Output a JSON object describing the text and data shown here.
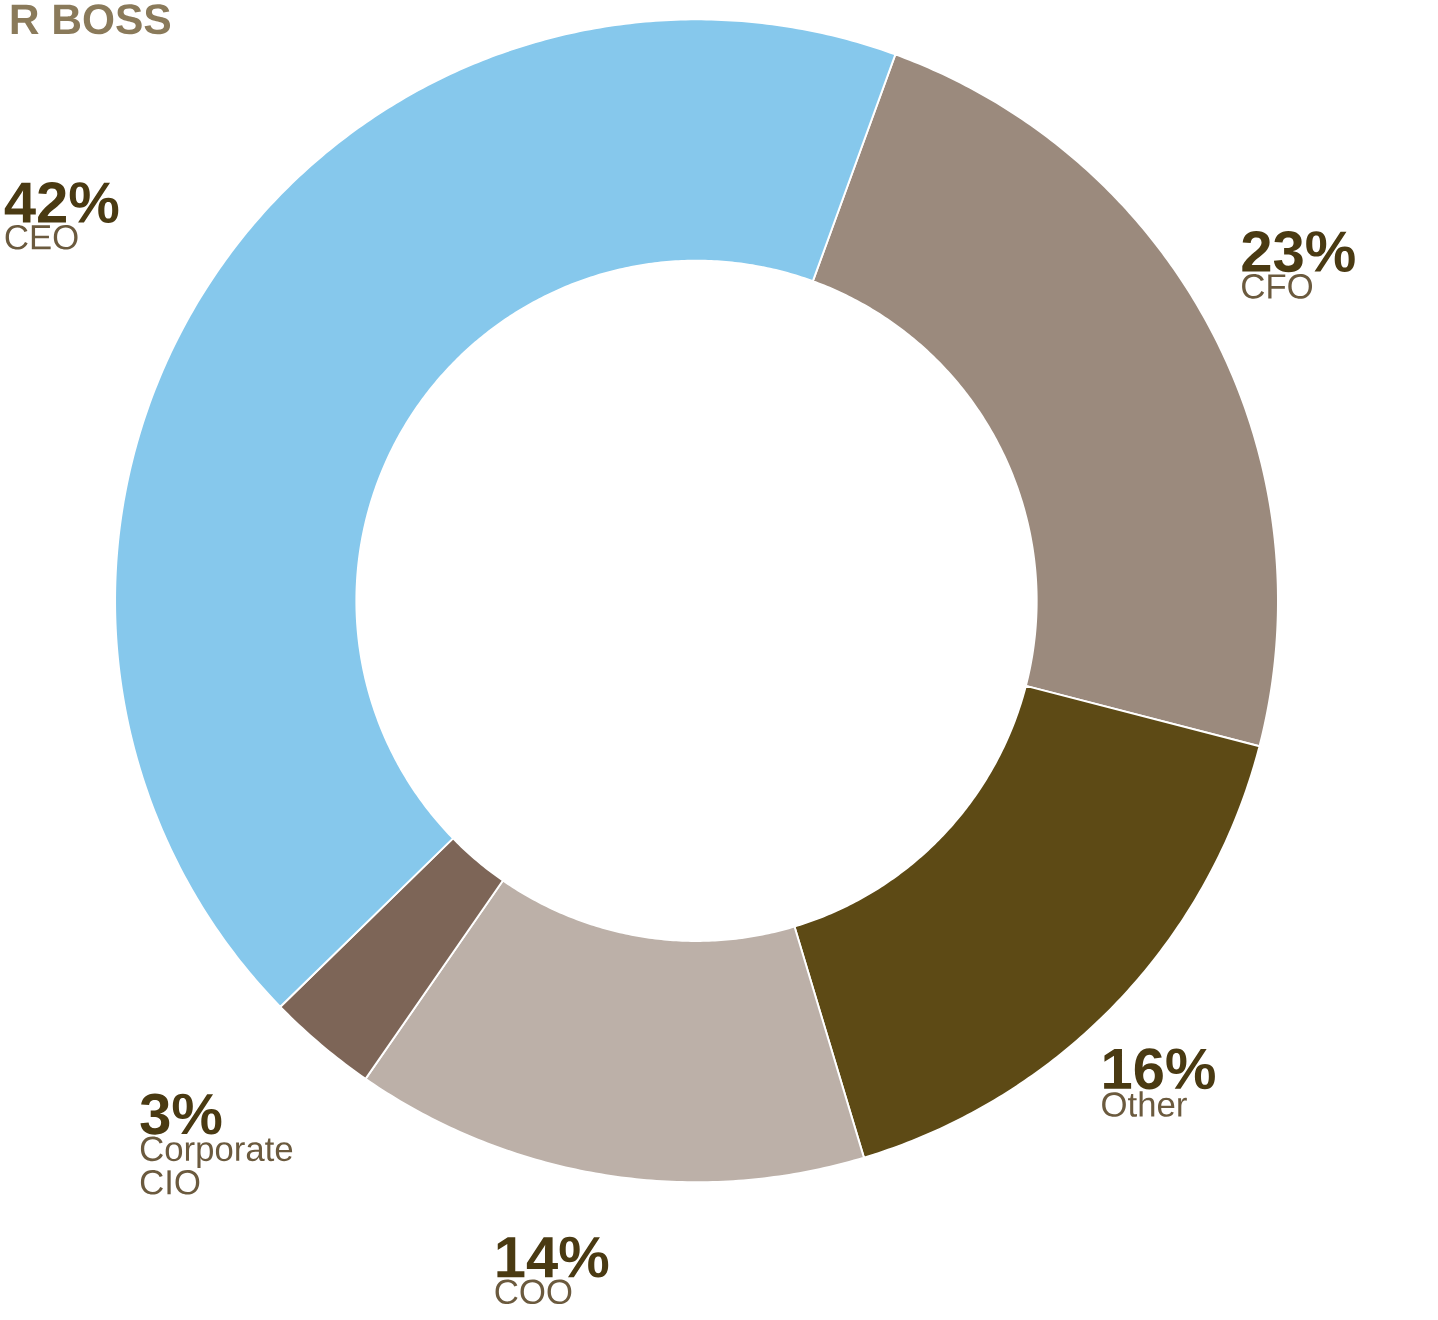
{
  "chart_data": {
    "type": "donut",
    "title": "R BOSS",
    "categories": [
      "CFO",
      "Other",
      "COO",
      "Corporate CIO",
      "CEO"
    ],
    "values": [
      23,
      16,
      14,
      3,
      42
    ],
    "value_labels": [
      "23%",
      "16%",
      "14%",
      "3%",
      "42%"
    ],
    "colors": [
      "#9b8a7d",
      "#5d4a15",
      "#bcb0a8",
      "#7d6557",
      "#86c8ec"
    ]
  }
}
